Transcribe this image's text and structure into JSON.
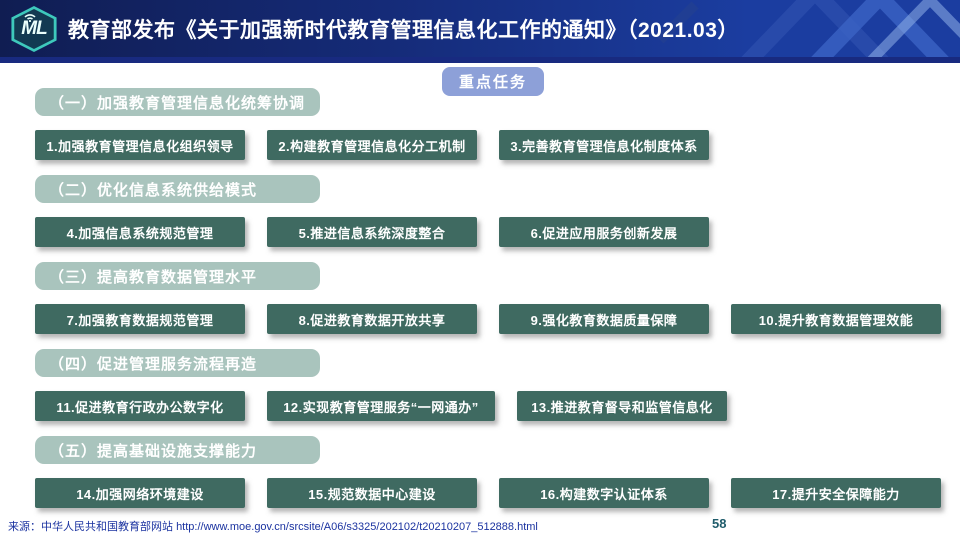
{
  "header": {
    "title": "教育部发布《关于加强新时代教育管理信息化工作的通知》（2021.03）",
    "logo_text": "ML"
  },
  "badge": {
    "label": "重点任务"
  },
  "sections": [
    {
      "heading": "（一）加强教育管理信息化统筹协调",
      "items": [
        "1.加强教育管理信息化组织领导",
        "2.构建教育管理信息化分工机制",
        "3.完善教育管理信息化制度体系"
      ]
    },
    {
      "heading": "（二）优化信息系统供给模式",
      "items": [
        "4.加强信息系统规范管理",
        "5.推进信息系统深度整合",
        "6.促进应用服务创新发展"
      ]
    },
    {
      "heading": "（三）提高教育数据管理水平",
      "items": [
        "7.加强教育数据规范管理",
        "8.促进教育数据开放共享",
        "9.强化教育数据质量保障",
        "10.提升教育数据管理效能"
      ]
    },
    {
      "heading": "（四）促进管理服务流程再造",
      "items": [
        "11.促进教育行政办公数字化",
        "12.实现教育管理服务“一网通办”",
        "13.推进教育督导和监管信息化"
      ]
    },
    {
      "heading": "（五）提高基础设施支撑能力",
      "items": [
        "14.加强网络环境建设",
        "15.规范数据中心建设",
        "16.构建数字认证体系",
        "17.提升安全保障能力"
      ]
    }
  ],
  "footer": {
    "source_label": "来源：中华人民共和国教育部网站",
    "url": "http://www.moe.gov.cn/srcsite/A06/s3325/202102/t20210207_512888.html",
    "page_number": "58"
  },
  "colors": {
    "header_gradient_start": "#101d52",
    "header_gradient_end": "#1b3da0",
    "badge_bg": "#8da0d8",
    "section_heading_bg": "#a9c4bd",
    "task_box_bg": "#3f6a61",
    "footer_text": "#1b33a0",
    "logo_teal": "#3ec9bc"
  }
}
